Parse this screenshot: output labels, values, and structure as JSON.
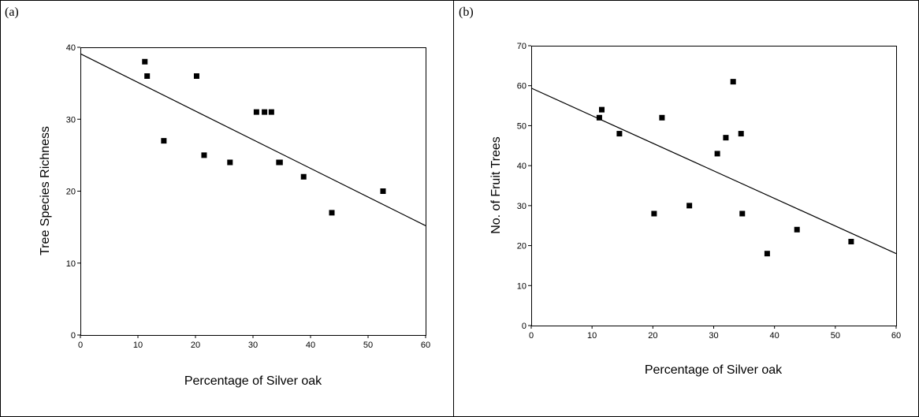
{
  "chart_data": [
    {
      "type": "scatter",
      "panel_label": "(a)",
      "xlabel": "Percentage of Silver oak",
      "ylabel": "Tree Species Richness",
      "xlim": [
        0,
        60
      ],
      "ylim": [
        0,
        40
      ],
      "xticks": [
        0,
        10,
        20,
        30,
        40,
        50,
        60
      ],
      "yticks": [
        0,
        10,
        20,
        30,
        40
      ],
      "grid": false,
      "series": [
        {
          "points": [
            {
              "x": 11.2,
              "y": 38
            },
            {
              "x": 11.6,
              "y": 36
            },
            {
              "x": 14.5,
              "y": 27
            },
            {
              "x": 20.2,
              "y": 36
            },
            {
              "x": 21.5,
              "y": 25
            },
            {
              "x": 26.0,
              "y": 24
            },
            {
              "x": 30.6,
              "y": 31
            },
            {
              "x": 32.0,
              "y": 31
            },
            {
              "x": 33.2,
              "y": 31
            },
            {
              "x": 34.5,
              "y": 24
            },
            {
              "x": 34.7,
              "y": 24
            },
            {
              "x": 38.8,
              "y": 22
            },
            {
              "x": 43.7,
              "y": 17
            },
            {
              "x": 52.6,
              "y": 20
            }
          ]
        }
      ],
      "trendline": {
        "x": [
          0,
          60
        ],
        "y": [
          39.1,
          15.2
        ]
      }
    },
    {
      "type": "scatter",
      "panel_label": "(b)",
      "xlabel": "Percentage of Silver oak",
      "ylabel": "No. of Fruit Trees",
      "xlim": [
        0,
        60
      ],
      "ylim": [
        0,
        70
      ],
      "xticks": [
        0,
        10,
        20,
        30,
        40,
        50,
        60
      ],
      "yticks": [
        0,
        10,
        20,
        30,
        40,
        50,
        60,
        70
      ],
      "grid": false,
      "series": [
        {
          "points": [
            {
              "x": 11.2,
              "y": 52
            },
            {
              "x": 11.6,
              "y": 54
            },
            {
              "x": 14.5,
              "y": 48
            },
            {
              "x": 20.2,
              "y": 28
            },
            {
              "x": 21.5,
              "y": 52
            },
            {
              "x": 26.0,
              "y": 30
            },
            {
              "x": 30.6,
              "y": 43
            },
            {
              "x": 32.0,
              "y": 47
            },
            {
              "x": 33.2,
              "y": 61
            },
            {
              "x": 34.5,
              "y": 48
            },
            {
              "x": 34.7,
              "y": 28
            },
            {
              "x": 38.8,
              "y": 18
            },
            {
              "x": 43.7,
              "y": 24
            },
            {
              "x": 52.6,
              "y": 21
            }
          ]
        }
      ],
      "trendline": {
        "x": [
          0,
          60
        ],
        "y": [
          59.4,
          18
        ]
      }
    }
  ]
}
